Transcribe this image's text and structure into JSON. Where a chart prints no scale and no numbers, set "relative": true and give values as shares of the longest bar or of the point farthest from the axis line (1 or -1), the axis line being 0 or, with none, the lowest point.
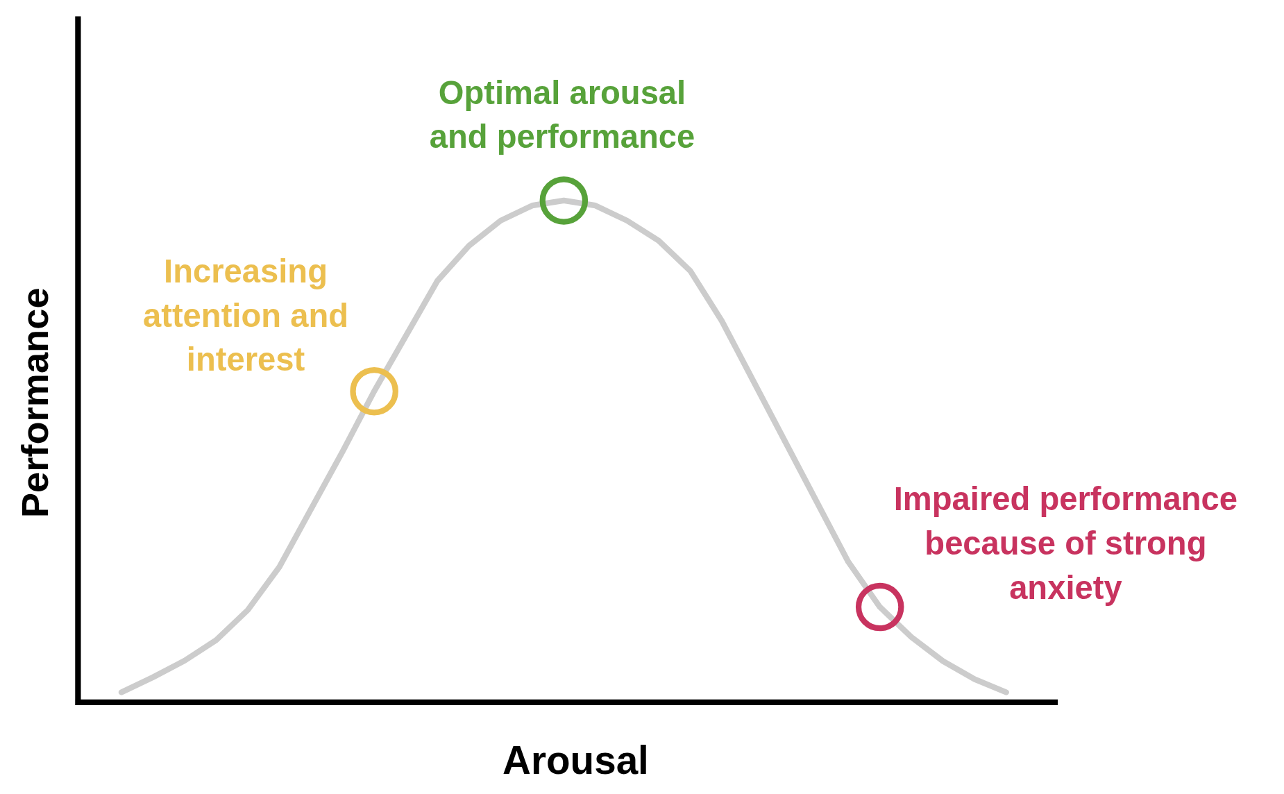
{
  "chart_data": {
    "type": "line",
    "relative": true,
    "xlabel": "Arousal",
    "ylabel": "Performance",
    "categories": [
      null,
      null,
      null,
      null,
      null,
      null,
      null,
      null,
      null,
      null,
      null,
      null,
      null,
      null,
      null,
      null,
      null,
      null,
      null,
      null,
      null,
      null,
      null,
      null,
      null,
      null,
      null,
      null,
      null
    ],
    "series": [
      {
        "color": "#cccccc",
        "values": [
          0.02,
          0.05,
          0.083,
          0.124,
          0.184,
          0.27,
          0.385,
          0.5,
          0.62,
          0.73,
          0.84,
          0.91,
          0.96,
          0.99,
          1,
          0.99,
          0.96,
          0.92,
          0.86,
          0.76,
          0.64,
          0.52,
          0.4,
          0.28,
          0.19,
          0.13,
          0.082,
          0.046,
          0.02
        ]
      }
    ],
    "annotations": [
      "Increasing attention and interest",
      "Optimal arousal and performance",
      "Impaired performance because of strong anxiety"
    ]
  }
}
